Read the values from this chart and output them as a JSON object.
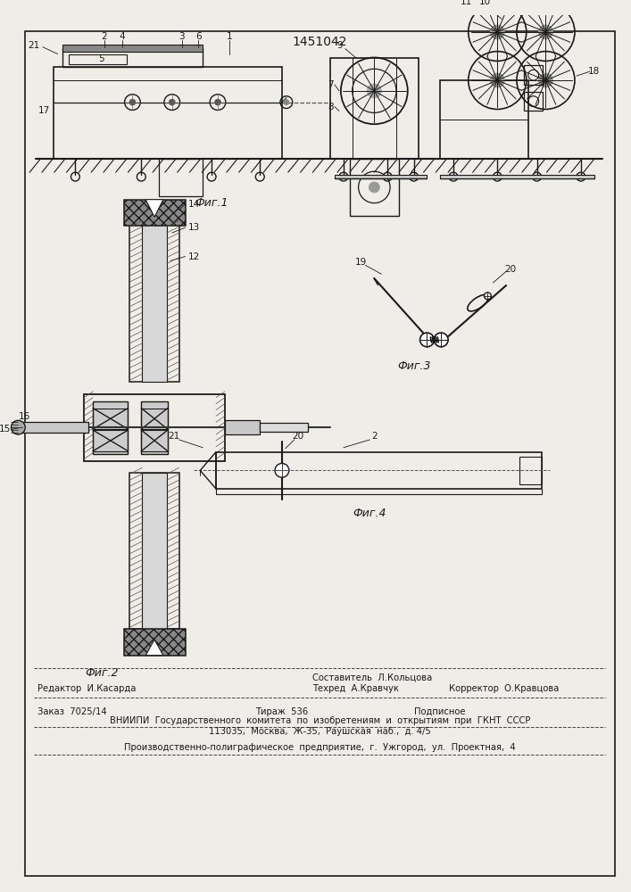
{
  "title": "1451042",
  "bg": "#f0ede8",
  "lc": "#1a1a1a",
  "fig1_caption": "Фиг.1",
  "fig2_caption": "Фиг.2",
  "fig3_caption": "Фиг.3",
  "fig4_caption": "Фиг.4",
  "footer": {
    "line1_left": "Редактор  И.Касарда",
    "line1_center1": "Составитель  Л.Кольцова",
    "line1_center2": "Техред  А.Кравчук",
    "line1_right": "Корректор  О.Кравцова",
    "line2_left": "Заказ  7025/14",
    "line2_center": "Тираж  536",
    "line2_right": "Подписное",
    "line3": "ВНИИПИ  Государственного  комитета  по  изобретениям  и  открытиям  при  ГКНТ  СССР",
    "line4": "113035,  Москва,  Ж-35,  Раушская  наб.,  д. 4/5",
    "line5": "Производственно-полиграфическое  предприятие,  г.  Ужгород,  ул.  Проектная,  4"
  }
}
